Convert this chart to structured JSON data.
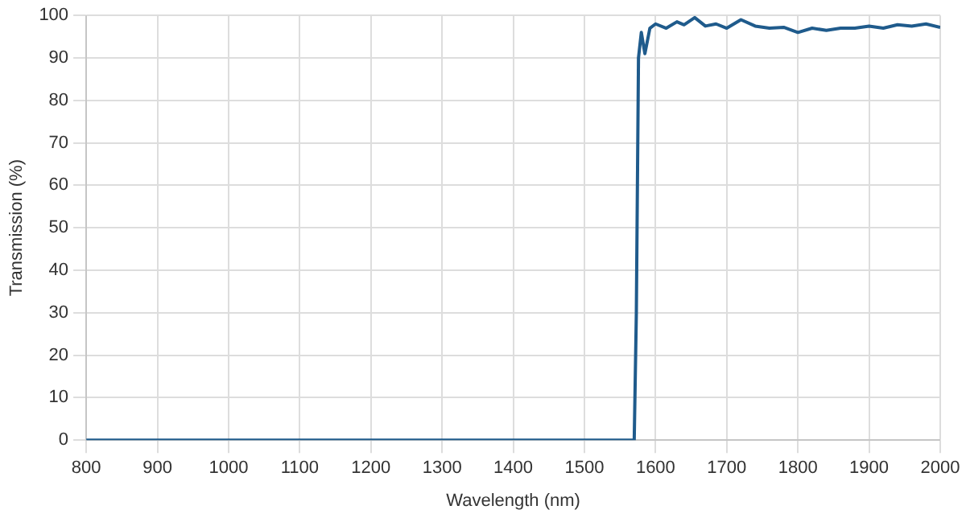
{
  "chart_data": {
    "type": "line",
    "xlabel": "Wavelength (nm)",
    "ylabel": "Transmission (%)",
    "x": [
      800,
      1565,
      1570,
      1573,
      1576,
      1580,
      1585,
      1592,
      1600,
      1615,
      1630,
      1640,
      1655,
      1670,
      1685,
      1700,
      1720,
      1740,
      1760,
      1780,
      1800,
      1820,
      1840,
      1860,
      1880,
      1900,
      1920,
      1940,
      1960,
      1980,
      2000
    ],
    "series": [
      {
        "color": "#1f5b8c",
        "values": [
          0,
          0,
          0,
          30,
          90,
          96,
          91,
          97,
          98,
          97,
          98.5,
          97.8,
          99.5,
          97.5,
          98,
          97,
          99,
          97.5,
          97,
          97.2,
          96,
          97,
          96.5,
          97,
          97,
          97.5,
          97,
          97.8,
          97.5,
          98,
          97.2
        ]
      }
    ],
    "xlim": [
      800,
      2000
    ],
    "xticks": [
      800,
      900,
      1000,
      1100,
      1200,
      1300,
      1400,
      1500,
      1600,
      1700,
      1800,
      1900,
      2000
    ],
    "ylim": [
      0,
      100
    ],
    "yticks": [
      0,
      10,
      20,
      30,
      40,
      50,
      60,
      70,
      80,
      90,
      100
    ],
    "grid": true,
    "legend": false,
    "marker": "none",
    "line_style": "solid"
  }
}
